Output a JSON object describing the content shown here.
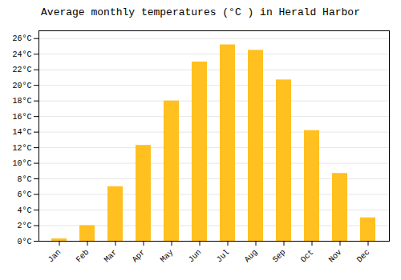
{
  "chart_data": {
    "type": "bar",
    "title": "Average monthly temperatures (°C ) in Herald Harbor",
    "categories": [
      "Jan",
      "Feb",
      "Mar",
      "Apr",
      "May",
      "Jun",
      "Jul",
      "Aug",
      "Sep",
      "Oct",
      "Nov",
      "Dec"
    ],
    "values": [
      0.3,
      2.0,
      7.0,
      12.3,
      18.0,
      23.0,
      25.2,
      24.5,
      20.7,
      14.2,
      8.7,
      3.0
    ],
    "color": "#FFC020",
    "ylim": [
      0,
      27
    ],
    "yticks": [
      {
        "value": 0,
        "label": "0°C"
      },
      {
        "value": 2,
        "label": "2°C"
      },
      {
        "value": 4,
        "label": "4°C"
      },
      {
        "value": 6,
        "label": "6°C"
      },
      {
        "value": 8,
        "label": "8°C"
      },
      {
        "value": 10,
        "label": "10°C"
      },
      {
        "value": 12,
        "label": "12°C"
      },
      {
        "value": 14,
        "label": "14°C"
      },
      {
        "value": 16,
        "label": "16°C"
      },
      {
        "value": 18,
        "label": "18°C"
      },
      {
        "value": 20,
        "label": "20°C"
      },
      {
        "value": 22,
        "label": "22°C"
      },
      {
        "value": 24,
        "label": "24°C"
      },
      {
        "value": 26,
        "label": "26°C"
      }
    ],
    "grid": true
  }
}
